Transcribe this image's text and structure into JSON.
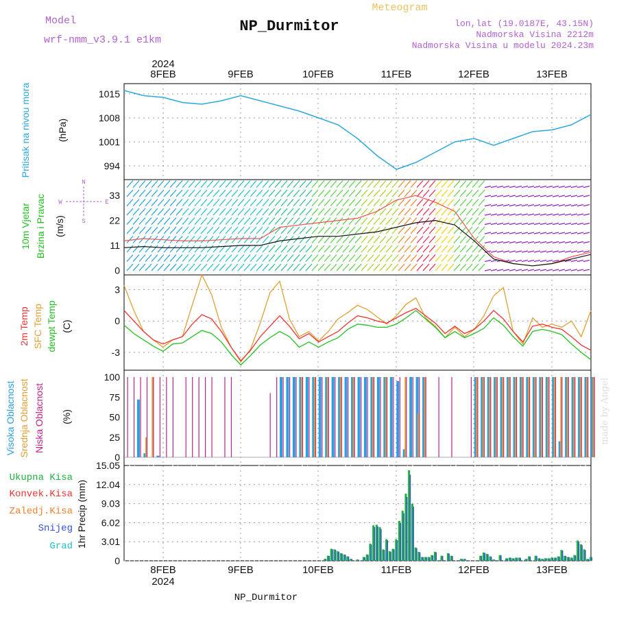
{
  "header": {
    "model_label": "Model",
    "model_name": "wrf-nmm_v3.9.1 e1km",
    "title": "NP_Durmitor",
    "subtitle": "Meteogram",
    "location": "lon,lat (19.0187E, 43.15N)",
    "elevation": "Nadmorska Visina 2212m",
    "model_elevation": "Nadmorska Visina u modelu 2024.23m",
    "footer": "NP_Durmitor",
    "signature": "made by Angel"
  },
  "colors": {
    "pressure": "#29a8e0",
    "t2m": "#f03030",
    "tsfc": "#e0a030",
    "tdew": "#20c020",
    "cloud_high": "#2aa0e0",
    "cloud_mid": "#e0a030",
    "cloud_low": "#c0208a",
    "precip_total": "#20b040",
    "precip_conv": "#f03030",
    "precip_frozen": "#f08030",
    "snow": "#3050e0",
    "graupel": "#20c0c0",
    "model_label": "#b060d0",
    "title_sub": "#f0c060"
  },
  "chart_data": [
    {
      "id": "pressure",
      "type": "line",
      "ylabel_lines": [
        "Pritisak na nivou mora",
        "(hPa)"
      ],
      "yticks": [
        994,
        1001,
        1008,
        1015
      ],
      "ylim": [
        990,
        1018
      ],
      "top_xticks": [
        "8FEB",
        "9FEB",
        "10FEB",
        "11FEB",
        "12FEB",
        "13FEB"
      ],
      "top_year": "2024",
      "x": [
        0,
        6,
        12,
        18,
        24,
        30,
        36,
        42,
        48,
        54,
        60,
        66,
        72,
        78,
        84,
        90,
        96,
        102,
        108,
        114,
        120,
        126,
        132,
        138,
        144
      ],
      "series": [
        {
          "values": [
            1016,
            1014.5,
            1014,
            1012.5,
            1012,
            1013,
            1014.5,
            1013,
            1011.5,
            1010,
            1008,
            1006,
            1002,
            997,
            993,
            995,
            998,
            1001,
            1002,
            1000,
            1002,
            1004,
            1004.5,
            1006,
            1009
          ]
        }
      ]
    },
    {
      "id": "wind",
      "type": "line",
      "ylabel_lines": [
        "10m Vjetar",
        "Brzina i Pravac",
        "(m/s)"
      ],
      "direction_key": [
        "N",
        "W",
        "E",
        "S"
      ],
      "yticks": [
        0,
        11,
        22,
        33
      ],
      "ylim": [
        -2,
        40
      ],
      "x": [
        0,
        6,
        12,
        18,
        24,
        30,
        36,
        42,
        48,
        54,
        60,
        66,
        72,
        78,
        84,
        90,
        96,
        102,
        108,
        114,
        120,
        126,
        132,
        138,
        144
      ],
      "series": [
        {
          "values": [
            10,
            10.5,
            10,
            10,
            10,
            10.5,
            11,
            11,
            13,
            14,
            15,
            15,
            16,
            17,
            19,
            21,
            22,
            20,
            13,
            5,
            3,
            2,
            3,
            5,
            7
          ]
        },
        {
          "values": [
            13,
            14,
            13.5,
            13,
            13,
            13.5,
            14,
            14,
            19,
            20,
            21,
            22,
            23,
            26,
            31,
            33,
            30,
            26,
            14,
            6,
            3,
            2,
            3,
            6,
            8
          ]
        }
      ]
    },
    {
      "id": "temperature",
      "type": "line",
      "ylabel_lines": [
        "2m Temp",
        "SFC Temp",
        "dewpt Temp",
        "(C)"
      ],
      "yticks": [
        -3,
        0,
        3
      ],
      "ylim": [
        -4.7,
        4.4
      ],
      "x": [
        0,
        3,
        6,
        9,
        12,
        15,
        18,
        21,
        24,
        27,
        30,
        33,
        36,
        39,
        42,
        45,
        48,
        51,
        54,
        57,
        60,
        63,
        66,
        69,
        72,
        75,
        78,
        81,
        84,
        87,
        90,
        93,
        96,
        99,
        102,
        105,
        108,
        111,
        114,
        117,
        120,
        123,
        126,
        129,
        132,
        135,
        138,
        141,
        144
      ],
      "series": [
        {
          "values": [
            1,
            0,
            -1,
            -1.8,
            -2.2,
            -1.8,
            -1.5,
            -0.3,
            0.6,
            0.2,
            -1,
            -2.5,
            -3.8,
            -2.8,
            -1.5,
            -0.5,
            0.5,
            -0.5,
            -1.7,
            -1.2,
            -2,
            -1.5,
            -1,
            -0.2,
            0.5,
            0.3,
            0,
            -0.2,
            0.3,
            0.8,
            1.2,
            0.5,
            -0.2,
            -1.2,
            -0.5,
            -1.2,
            -0.8,
            0,
            1,
            0.2,
            -1,
            -2,
            -0.5,
            -0.3,
            -0.6,
            -0.8,
            -1.5,
            -2.3,
            -2.8
          ]
        },
        {
          "values": [
            3.4,
            1,
            -1,
            -1.8,
            -2.5,
            -1.8,
            -1.5,
            1.5,
            4.4,
            2.5,
            -0.6,
            -2.5,
            -3.9,
            -2.7,
            -0.2,
            2.7,
            3.8,
            0.2,
            -1.5,
            -1,
            -1.9,
            -1,
            0.2,
            0.8,
            1.5,
            1.1,
            0.4,
            -0.3,
            0.5,
            1.6,
            2.2,
            0.3,
            -0.5,
            -1.6,
            -0.6,
            -1.5,
            -0.8,
            0.5,
            2.4,
            3.2,
            -1,
            -2.2,
            0.3,
            -0.6,
            -0.3,
            -0.6,
            0,
            -1.5,
            1
          ]
        },
        {
          "values": [
            -0.4,
            -1.2,
            -1.8,
            -2.4,
            -2.9,
            -2.2,
            -2.1,
            -1.5,
            -0.9,
            -1.2,
            -2,
            -3.2,
            -4.2,
            -3.3,
            -2.3,
            -1.6,
            -1,
            -1.5,
            -2.5,
            -2,
            -2.5,
            -2,
            -1.6,
            -0.8,
            -0.3,
            -0.4,
            -0.6,
            -0.6,
            -0.3,
            0.3,
            1,
            0.2,
            -0.6,
            -1.6,
            -1,
            -1.6,
            -1.2,
            -0.7,
            0.3,
            -0.4,
            -1.5,
            -2.4,
            -1,
            -0.8,
            -1,
            -1.3,
            -2.2,
            -3,
            -3.7
          ]
        }
      ]
    },
    {
      "id": "clouds",
      "type": "bar",
      "ylabel_lines": [
        "Visoka Oblacnost",
        "Srednja Oblacnost",
        "Niska Oblacnost",
        "(%)"
      ],
      "yticks": [
        0,
        25,
        50,
        75,
        100
      ],
      "ylim": [
        0,
        100
      ],
      "x": [
        0,
        2,
        4,
        6,
        8,
        10,
        12,
        14,
        16,
        18,
        20,
        22,
        24,
        26,
        28,
        30,
        32,
        34,
        36,
        38,
        40,
        42,
        44,
        46,
        48,
        50,
        52,
        54,
        56,
        58,
        60,
        62,
        64,
        66,
        68,
        70,
        72,
        74,
        76,
        78,
        80,
        82,
        84,
        86,
        88,
        90,
        92,
        94,
        96,
        98,
        100,
        102,
        104,
        106,
        108,
        110,
        112,
        114,
        116,
        118,
        120,
        122,
        124,
        126,
        128,
        130,
        132,
        134,
        136,
        138,
        140,
        142,
        144
      ],
      "series": [
        {
          "values": [
            0,
            0,
            72,
            5,
            0,
            2,
            0,
            0,
            0,
            0,
            0,
            0,
            0,
            0,
            0,
            0,
            0,
            0,
            0,
            0,
            0,
            0,
            0,
            0,
            100,
            100,
            100,
            100,
            100,
            100,
            100,
            100,
            100,
            100,
            100,
            100,
            100,
            100,
            100,
            100,
            100,
            100,
            95,
            10,
            100,
            100,
            100,
            0,
            0,
            0,
            0,
            0,
            0,
            0,
            100,
            100,
            100,
            100,
            100,
            100,
            100,
            100,
            100,
            100,
            100,
            100,
            100,
            20,
            100,
            100,
            100,
            100,
            100
          ]
        },
        {
          "values": [
            0,
            0,
            0,
            25,
            100,
            0,
            0,
            0,
            0,
            0,
            0,
            0,
            0,
            0,
            0,
            0,
            0,
            0,
            0,
            0,
            0,
            0,
            0,
            0,
            0,
            0,
            0,
            100,
            0,
            100,
            0,
            100,
            0,
            100,
            0,
            100,
            0,
            0,
            100,
            0,
            100,
            0,
            0,
            100,
            0,
            55,
            100,
            0,
            0,
            0,
            0,
            0,
            0,
            0,
            100,
            100,
            100,
            100,
            100,
            100,
            100,
            100,
            100,
            100,
            100,
            100,
            100,
            100,
            100,
            100,
            100,
            100,
            100
          ]
        },
        {
          "values": [
            100,
            100,
            100,
            100,
            100,
            100,
            100,
            100,
            0,
            100,
            100,
            100,
            100,
            100,
            0,
            100,
            100,
            0,
            0,
            0,
            0,
            0,
            80,
            100,
            100,
            100,
            100,
            100,
            100,
            100,
            100,
            100,
            100,
            100,
            100,
            100,
            100,
            100,
            100,
            100,
            100,
            100,
            100,
            100,
            100,
            100,
            100,
            0,
            100,
            0,
            100,
            0,
            0,
            100,
            100,
            100,
            100,
            100,
            100,
            100,
            100,
            100,
            100,
            100,
            100,
            100,
            100,
            100,
            100,
            100,
            100,
            100,
            100
          ]
        }
      ]
    },
    {
      "id": "precip",
      "type": "bar",
      "ylabel_lines": [
        "1hr Precip (mm)"
      ],
      "legend": [
        "Ukupna Kisa",
        "Konvek.Kisa",
        "Zaledj.Kisa",
        "Snijeg",
        "Grad"
      ],
      "yticks": [
        0,
        3.01,
        6.02,
        9.03,
        12.04,
        15.05
      ],
      "ytick_labels": [
        "0",
        "3.01",
        "6.02",
        "9.03",
        "12.04",
        "15.05"
      ],
      "ylim": [
        0,
        15.05
      ],
      "bottom_xticks": [
        "8FEB",
        "9FEB",
        "10FEB",
        "11FEB",
        "12FEB",
        "13FEB"
      ],
      "bottom_year": "2024",
      "x": [
        62,
        63,
        64,
        65,
        66,
        67,
        68,
        69,
        70,
        72,
        74,
        75,
        76,
        77,
        78,
        79,
        80,
        81,
        82,
        83,
        84,
        85,
        86,
        87,
        88,
        89,
        90,
        91,
        92,
        93,
        94,
        95,
        96,
        98,
        100,
        101,
        104,
        105,
        110,
        111,
        112,
        113,
        114,
        116,
        118,
        119,
        120,
        121,
        122,
        124,
        125,
        127,
        128,
        129,
        130,
        131,
        132,
        133,
        134,
        135,
        136,
        137,
        138,
        139,
        140,
        141,
        142,
        143,
        144
      ],
      "series": [
        {
          "values": [
            0.3,
            0.8,
            1.9,
            1.8,
            1.5,
            1.2,
            1,
            0.7,
            0.3,
            0.2,
            0.6,
            1,
            2.7,
            5.6,
            5.7,
            5.3,
            1.8,
            3.4,
            1.5,
            1.9,
            3.4,
            6.3,
            7.9,
            10.6,
            14.3,
            9,
            2.1,
            1.4,
            0.6,
            0.6,
            0.6,
            0.9,
            1.4,
            0.8,
            1.2,
            0.8,
            0.3,
            0.3,
            0.8,
            1.3,
            1.1,
            0.7,
            0.2,
            0.9,
            0.4,
            0.5,
            0.4,
            0.5,
            0.5,
            0.3,
            0.7,
            0.8,
            0.4,
            0.3,
            0.4,
            0.4,
            0.5,
            0.5,
            0.7,
            1.7,
            0.8,
            0.6,
            0.5,
            0.9,
            3.2,
            2.6,
            1.8,
            0.3,
            0.6
          ]
        }
      ]
    }
  ]
}
